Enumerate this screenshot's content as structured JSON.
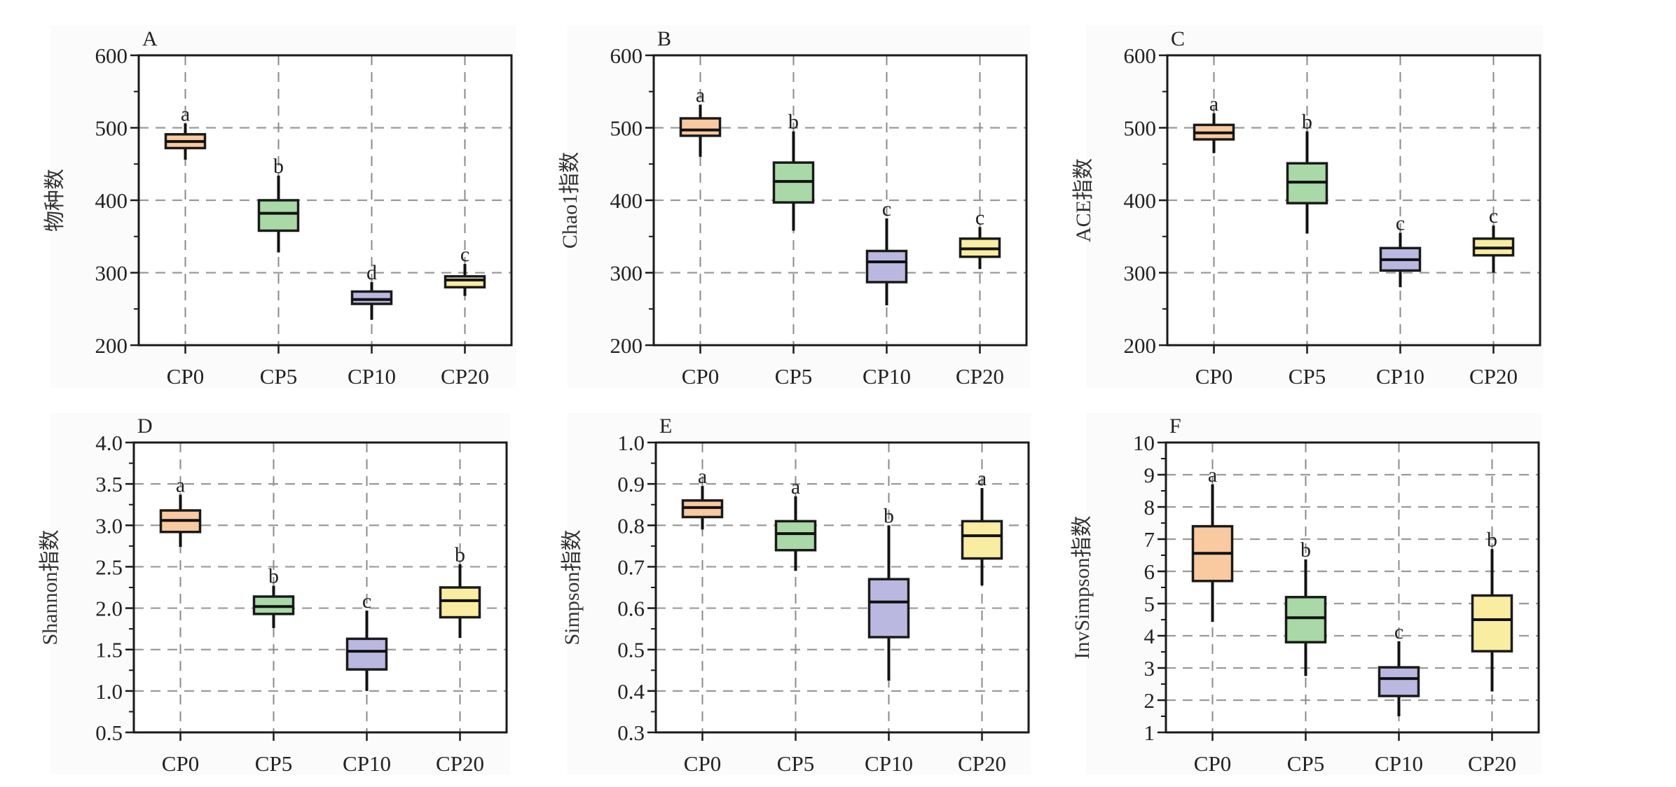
{
  "figure": {
    "colors": {
      "CP0": "#f9c9a0",
      "CP5": "#a9d9a6",
      "CP10": "#bab8e0",
      "CP20": "#f8eda0",
      "grid": "#9a9a9a",
      "axis": "#1a1a1a"
    }
  },
  "chart_data": [
    {
      "type": "box",
      "panel": "A",
      "ylabel": "物种数",
      "xlabel": "",
      "categories": [
        "CP0",
        "CP5",
        "CP10",
        "CP20"
      ],
      "ylim": [
        200,
        600
      ],
      "yticks": [
        200,
        300,
        400,
        500,
        600
      ],
      "ytick_labels": [
        "200",
        "300",
        "400",
        "500",
        "600"
      ],
      "grid": true,
      "series": [
        {
          "name": "CP0",
          "whisker_low": 456,
          "q1": 472,
          "median": 481,
          "q3": 491,
          "whisker_high": 506,
          "significance": "a"
        },
        {
          "name": "CP5",
          "whisker_low": 328,
          "q1": 358,
          "median": 382,
          "q3": 400,
          "whisker_high": 434,
          "significance": "b"
        },
        {
          "name": "CP10",
          "whisker_low": 235,
          "q1": 257,
          "median": 263,
          "q3": 274,
          "whisker_high": 287,
          "significance": "d"
        },
        {
          "name": "CP20",
          "whisker_low": 268,
          "q1": 280,
          "median": 290,
          "q3": 295,
          "whisker_high": 312,
          "significance": "c"
        }
      ]
    },
    {
      "type": "box",
      "panel": "B",
      "ylabel": "Chao1指数",
      "xlabel": "",
      "categories": [
        "CP0",
        "CP5",
        "CP10",
        "CP20"
      ],
      "ylim": [
        200,
        600
      ],
      "yticks": [
        200,
        300,
        400,
        500,
        600
      ],
      "ytick_labels": [
        "200",
        "300",
        "400",
        "500",
        "600"
      ],
      "grid": true,
      "series": [
        {
          "name": "CP0",
          "whisker_low": 460,
          "q1": 489,
          "median": 497,
          "q3": 513,
          "whisker_high": 532,
          "significance": "a"
        },
        {
          "name": "CP5",
          "whisker_low": 358,
          "q1": 397,
          "median": 426,
          "q3": 452,
          "whisker_high": 495,
          "significance": "b"
        },
        {
          "name": "CP10",
          "whisker_low": 255,
          "q1": 287,
          "median": 315,
          "q3": 330,
          "whisker_high": 375,
          "significance": "c"
        },
        {
          "name": "CP20",
          "whisker_low": 305,
          "q1": 322,
          "median": 333,
          "q3": 347,
          "whisker_high": 363,
          "significance": "c"
        }
      ]
    },
    {
      "type": "box",
      "panel": "C",
      "ylabel": "ACE指数",
      "xlabel": "",
      "categories": [
        "CP0",
        "CP5",
        "CP10",
        "CP20"
      ],
      "ylim": [
        200,
        600
      ],
      "yticks": [
        200,
        300,
        400,
        500,
        600
      ],
      "ytick_labels": [
        "200",
        "300",
        "400",
        "500",
        "600"
      ],
      "grid": true,
      "series": [
        {
          "name": "CP0",
          "whisker_low": 465,
          "q1": 484,
          "median": 493,
          "q3": 504,
          "whisker_high": 520,
          "significance": "a"
        },
        {
          "name": "CP5",
          "whisker_low": 354,
          "q1": 396,
          "median": 425,
          "q3": 451,
          "whisker_high": 495,
          "significance": "b"
        },
        {
          "name": "CP10",
          "whisker_low": 280,
          "q1": 303,
          "median": 318,
          "q3": 334,
          "whisker_high": 355,
          "significance": "c"
        },
        {
          "name": "CP20",
          "whisker_low": 300,
          "q1": 324,
          "median": 334,
          "q3": 347,
          "whisker_high": 365,
          "significance": "c"
        }
      ]
    },
    {
      "type": "box",
      "panel": "D",
      "ylabel": "Shannon指数",
      "xlabel": "",
      "categories": [
        "CP0",
        "CP5",
        "CP10",
        "CP20"
      ],
      "ylim": [
        0.5,
        4.0
      ],
      "yticks": [
        0.5,
        1.0,
        1.5,
        2.0,
        2.5,
        3.0,
        3.5,
        4.0
      ],
      "ytick_labels": [
        "0.5",
        "1.0",
        "1.5",
        "2.0",
        "2.5",
        "3.0",
        "3.5",
        "4.0"
      ],
      "grid": true,
      "series": [
        {
          "name": "CP0",
          "whisker_low": 2.74,
          "q1": 2.92,
          "median": 3.06,
          "q3": 3.18,
          "whisker_high": 3.37,
          "significance": "a"
        },
        {
          "name": "CP5",
          "whisker_low": 1.76,
          "q1": 1.93,
          "median": 2.02,
          "q3": 2.14,
          "whisker_high": 2.27,
          "significance": "b"
        },
        {
          "name": "CP10",
          "whisker_low": 1.0,
          "q1": 1.26,
          "median": 1.48,
          "q3": 1.63,
          "whisker_high": 1.97,
          "significance": "c"
        },
        {
          "name": "CP20",
          "whisker_low": 1.64,
          "q1": 1.89,
          "median": 2.09,
          "q3": 2.25,
          "whisker_high": 2.53,
          "significance": "b"
        }
      ]
    },
    {
      "type": "box",
      "panel": "E",
      "ylabel": "Simpson指数",
      "xlabel": "",
      "categories": [
        "CP0",
        "CP5",
        "CP10",
        "CP20"
      ],
      "ylim": [
        0.3,
        1.0
      ],
      "yticks": [
        0.3,
        0.4,
        0.5,
        0.6,
        0.7,
        0.8,
        0.9,
        1.0
      ],
      "ytick_labels": [
        "0.3",
        "0.4",
        "0.5",
        "0.6",
        "0.7",
        "0.8",
        "0.9",
        "1.0"
      ],
      "grid": true,
      "series": [
        {
          "name": "CP0",
          "whisker_low": 0.79,
          "q1": 0.82,
          "median": 0.843,
          "q3": 0.86,
          "whisker_high": 0.895,
          "significance": "a"
        },
        {
          "name": "CP5",
          "whisker_low": 0.69,
          "q1": 0.74,
          "median": 0.78,
          "q3": 0.81,
          "whisker_high": 0.87,
          "significance": "a"
        },
        {
          "name": "CP10",
          "whisker_low": 0.425,
          "q1": 0.53,
          "median": 0.615,
          "q3": 0.67,
          "whisker_high": 0.8,
          "significance": "b"
        },
        {
          "name": "CP20",
          "whisker_low": 0.655,
          "q1": 0.72,
          "median": 0.775,
          "q3": 0.81,
          "whisker_high": 0.89,
          "significance": "a"
        }
      ]
    },
    {
      "type": "box",
      "panel": "F",
      "ylabel": "InvSimpson指数",
      "xlabel": "",
      "categories": [
        "CP0",
        "CP5",
        "CP10",
        "CP20"
      ],
      "ylim": [
        1,
        10
      ],
      "yticks": [
        1,
        2,
        3,
        4,
        5,
        6,
        7,
        8,
        9,
        10
      ],
      "ytick_labels": [
        "1",
        "2",
        "3",
        "4",
        "5",
        "6",
        "7",
        "8",
        "9",
        "10"
      ],
      "grid": true,
      "series": [
        {
          "name": "CP0",
          "whisker_low": 4.43,
          "q1": 5.7,
          "median": 6.56,
          "q3": 7.4,
          "whisker_high": 8.7,
          "significance": "a"
        },
        {
          "name": "CP5",
          "whisker_low": 2.75,
          "q1": 3.8,
          "median": 4.56,
          "q3": 5.2,
          "whisker_high": 6.37,
          "significance": "b"
        },
        {
          "name": "CP10",
          "whisker_low": 1.5,
          "q1": 2.13,
          "median": 2.67,
          "q3": 3.02,
          "whisker_high": 3.83,
          "significance": "c"
        },
        {
          "name": "CP20",
          "whisker_low": 2.27,
          "q1": 3.52,
          "median": 4.5,
          "q3": 5.25,
          "whisker_high": 6.69,
          "significance": "b"
        }
      ]
    }
  ]
}
